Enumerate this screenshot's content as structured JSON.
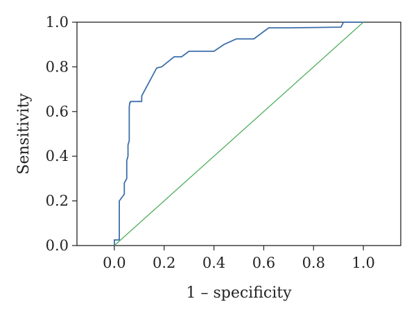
{
  "chart_data": {
    "type": "line",
    "title": "",
    "xlabel": "1 – specificity",
    "ylabel": "Sensitivity",
    "xlim": [
      -0.15,
      1.15
    ],
    "ylim": [
      0,
      1
    ],
    "x_ticks": [
      "0.0",
      "0.2",
      "0.4",
      "0.6",
      "0.8",
      "1.0"
    ],
    "y_ticks": [
      "0.0",
      "0.2",
      "0.4",
      "0.6",
      "0.8",
      "1.0"
    ],
    "grid": false,
    "legend": "none",
    "series": [
      {
        "color": "#3c6eaa",
        "x": [
          0.0,
          0.0,
          0.02,
          0.02,
          0.04,
          0.04,
          0.05,
          0.05,
          0.055,
          0.055,
          0.06,
          0.06,
          0.062,
          0.065,
          0.065,
          0.07,
          0.11,
          0.11,
          0.17,
          0.19,
          0.24,
          0.27,
          0.3,
          0.4,
          0.44,
          0.49,
          0.56,
          0.62,
          0.7,
          0.91,
          0.92,
          1.0
        ],
        "y": [
          0.0,
          0.025,
          0.025,
          0.2,
          0.23,
          0.28,
          0.3,
          0.38,
          0.4,
          0.45,
          0.47,
          0.62,
          0.64,
          0.64,
          0.645,
          0.645,
          0.645,
          0.67,
          0.795,
          0.8,
          0.845,
          0.845,
          0.87,
          0.87,
          0.9,
          0.925,
          0.925,
          0.975,
          0.975,
          0.978,
          1.0,
          1.0
        ]
      },
      {
        "color": "#4fae5a",
        "x": [
          0.0,
          1.0
        ],
        "y": [
          0.0,
          1.0
        ]
      }
    ]
  }
}
